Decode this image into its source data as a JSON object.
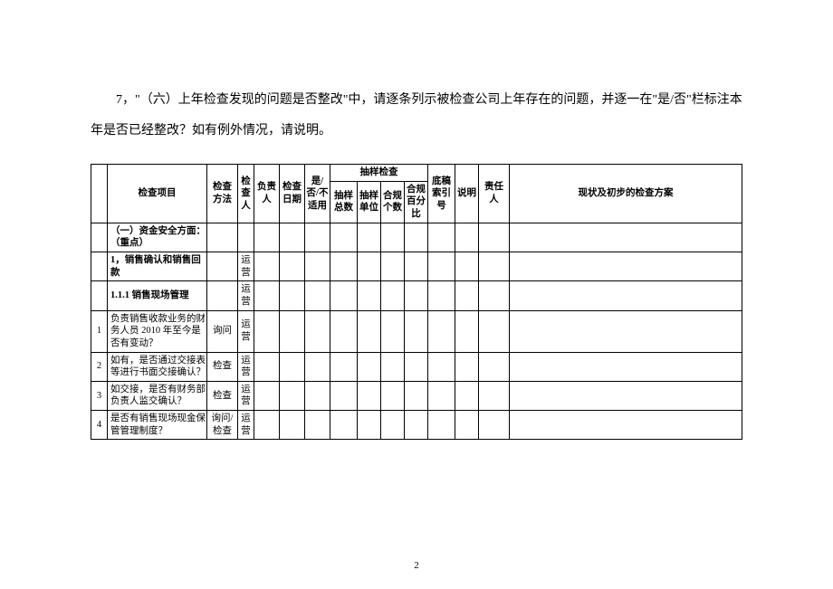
{
  "intro": "7，\"（六）上年检查发现的问题是否整改\"中，请逐条列示被检查公司上年存在的问题，并逐一在\"是/否\"栏标注本年是否已经整改？如有例外情况，请说明。",
  "headers": {
    "number": "",
    "item": "检查项目",
    "method": "检查方法",
    "checker": "检查人",
    "responsible": "负责人",
    "date": "检查日期",
    "yesno": "是/否/不适用",
    "sampling": "抽样检查",
    "sample_total": "抽样总数",
    "sample_unit": "抽样单位",
    "compliant_count": "合规个数",
    "compliant_pct": "合规百分比",
    "ref": "底稿索引号",
    "desc": "说明",
    "liable": "责任人",
    "plan": "现状及初步的检查方案"
  },
  "rows": [
    {
      "num": "",
      "item": "（一）资金安全方面：（重点）",
      "method": "",
      "checker": "",
      "bold": true
    },
    {
      "num": "",
      "item": "1，销售确认和销售回款",
      "method": "",
      "checker": "运营",
      "bold": true
    },
    {
      "num": "",
      "item": "1.1.1 销售现场管理",
      "method": "",
      "checker": "运营",
      "bold": true
    },
    {
      "num": "1",
      "item": "负责销售收款业务的财务人员 2010 年至今是否有变动？",
      "method": "询问",
      "checker": "运营",
      "bold": false
    },
    {
      "num": "2",
      "item": "如有，是否通过交接表等进行书面交接确认？",
      "method": "检查",
      "checker": "运营",
      "bold": false
    },
    {
      "num": "3",
      "item": "如交接，是否有财务部负责人监交确认？",
      "method": "检查",
      "checker": "运营",
      "bold": false
    },
    {
      "num": "4",
      "item": "是否有销售现场现金保管管理制度？",
      "method": "询问/检查",
      "checker": "运营",
      "bold": false
    }
  ],
  "page_number": "2",
  "colors": {
    "background": "#ffffff",
    "text": "#000000",
    "border": "#000000"
  }
}
